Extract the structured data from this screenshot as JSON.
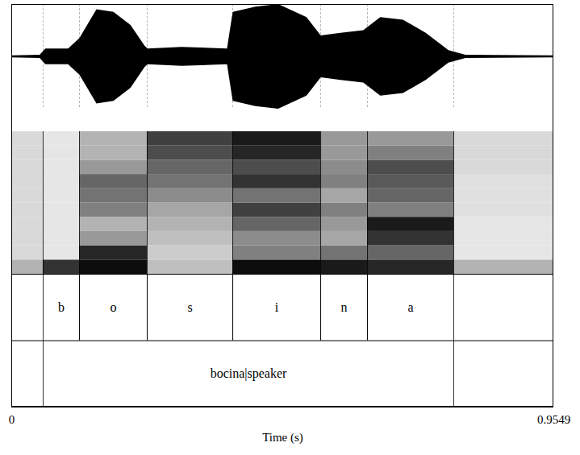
{
  "chart_data": {
    "type": "spectrogram",
    "xlabel": "Time (s)",
    "xlim": [
      0,
      0.9549
    ],
    "xticks": [
      0,
      0.9549
    ],
    "tick_labels": "x",
    "waveform": {
      "ylim": [
        -1,
        1
      ],
      "time": [
        0,
        0.05,
        0.06,
        0.1,
        0.12,
        0.15,
        0.18,
        0.21,
        0.235,
        0.24,
        0.3,
        0.38,
        0.39,
        0.43,
        0.47,
        0.52,
        0.545,
        0.58,
        0.62,
        0.65,
        0.69,
        0.73,
        0.77,
        0.8,
        0.9549
      ],
      "amplitude": [
        0.02,
        0.03,
        0.15,
        0.15,
        0.35,
        0.9,
        0.85,
        0.6,
        0.2,
        0.15,
        0.18,
        0.15,
        0.85,
        0.95,
        1.0,
        0.75,
        0.4,
        0.45,
        0.5,
        0.75,
        0.7,
        0.45,
        0.12,
        0.03,
        0.02
      ]
    },
    "spectrogram": {
      "ylim": [
        0,
        5000
      ],
      "band_edges": [
        0,
        500,
        1000,
        1500,
        2000,
        2500,
        3000,
        3500,
        4000,
        4500,
        5000
      ],
      "times": [
        0,
        0.0554,
        0.1194,
        0.2387,
        0.3894,
        0.5443,
        0.6267,
        0.7787,
        0.9549
      ],
      "intensity_range": [
        0,
        1
      ],
      "intensity": [
        [
          0.3,
          0.15,
          0.15,
          0.15,
          0.15,
          0.15,
          0.15,
          0.15,
          0.15,
          0.15
        ],
        [
          0.8,
          0.1,
          0.1,
          0.1,
          0.1,
          0.1,
          0.1,
          0.1,
          0.1,
          0.1
        ],
        [
          0.95,
          0.85,
          0.4,
          0.3,
          0.5,
          0.55,
          0.6,
          0.4,
          0.3,
          0.3
        ],
        [
          0.25,
          0.2,
          0.25,
          0.3,
          0.35,
          0.45,
          0.55,
          0.6,
          0.7,
          0.75
        ],
        [
          0.95,
          0.5,
          0.45,
          0.6,
          0.75,
          0.55,
          0.8,
          0.7,
          0.85,
          0.9
        ],
        [
          0.9,
          0.55,
          0.35,
          0.4,
          0.5,
          0.35,
          0.5,
          0.45,
          0.4,
          0.4
        ],
        [
          0.85,
          0.6,
          0.8,
          0.9,
          0.5,
          0.6,
          0.65,
          0.7,
          0.5,
          0.4
        ],
        [
          0.3,
          0.1,
          0.1,
          0.1,
          0.12,
          0.12,
          0.12,
          0.15,
          0.15,
          0.15
        ]
      ]
    },
    "tiers": [
      {
        "intervals": [
          {
            "start": 0.0554,
            "end": 0.1194,
            "label": "b"
          },
          {
            "start": 0.1194,
            "end": 0.2387,
            "label": "o"
          },
          {
            "start": 0.2387,
            "end": 0.3894,
            "label": "s"
          },
          {
            "start": 0.3894,
            "end": 0.5443,
            "label": "i"
          },
          {
            "start": 0.5443,
            "end": 0.6267,
            "label": "n"
          },
          {
            "start": 0.6267,
            "end": 0.7787,
            "label": "a"
          }
        ]
      },
      {
        "intervals": [
          {
            "start": 0.0554,
            "end": 0.7787,
            "label": "bocina|speaker"
          }
        ]
      }
    ]
  }
}
